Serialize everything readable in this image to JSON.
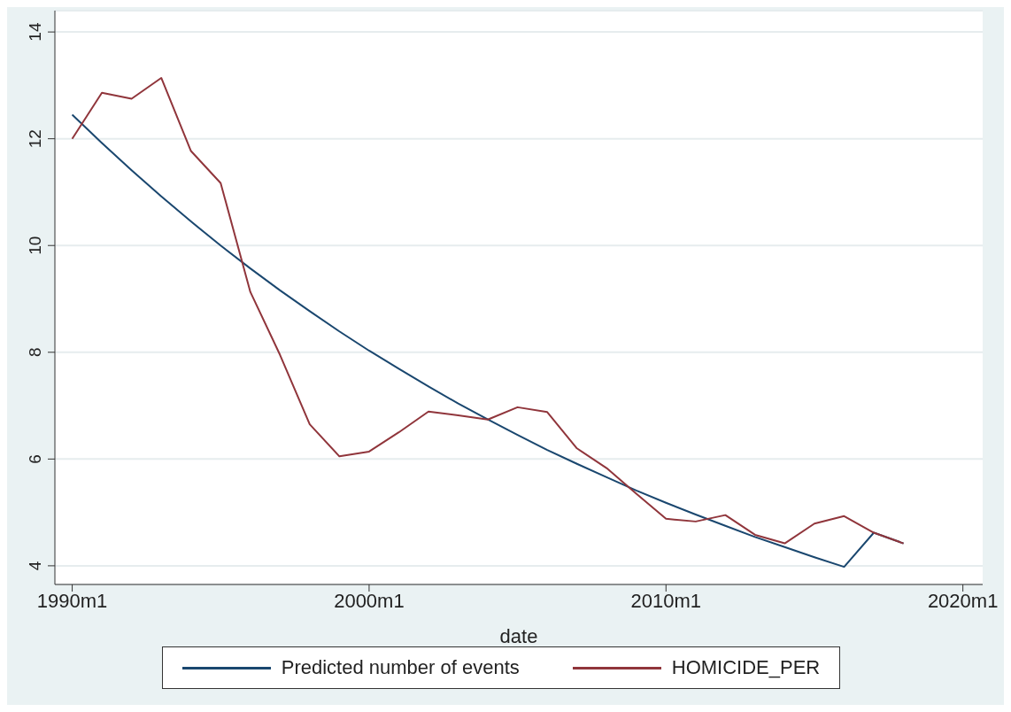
{
  "chart_data": {
    "type": "line",
    "xlabel": "date",
    "x": [
      "1990-01",
      "1991-01",
      "1992-01",
      "1993-01",
      "1994-01",
      "1995-01",
      "1996-01",
      "1997-01",
      "1998-01",
      "1999-01",
      "2000-01",
      "2001-01",
      "2002-01",
      "2003-01",
      "2004-01",
      "2005-01",
      "2006-01",
      "2007-01",
      "2008-01",
      "2009-01",
      "2010-01",
      "2011-01",
      "2012-01",
      "2013-01",
      "2014-01",
      "2015-01",
      "2016-01",
      "2017-01",
      "2018-01"
    ],
    "series": [
      {
        "name": "Predicted number of events",
        "color": "#1a476f",
        "values": [
          12.45,
          11.92,
          11.41,
          10.92,
          10.45,
          10.0,
          9.57,
          9.16,
          8.77,
          8.39,
          8.03,
          7.69,
          7.36,
          7.04,
          6.74,
          6.45,
          6.17,
          5.91,
          5.66,
          5.41,
          5.18,
          4.96,
          4.75,
          4.54,
          4.35,
          4.16,
          3.98,
          4.62,
          4.42
        ]
      },
      {
        "name": "HOMICIDE_PER",
        "color": "#90353b",
        "values": [
          12.0,
          12.86,
          12.75,
          13.14,
          11.77,
          11.17,
          9.13,
          7.95,
          6.65,
          6.05,
          6.14,
          6.5,
          6.89,
          6.82,
          6.74,
          6.97,
          6.88,
          6.2,
          5.83,
          5.35,
          4.88,
          4.83,
          4.95,
          4.58,
          4.42,
          4.79,
          4.93,
          4.62,
          4.42
        ]
      }
    ],
    "xlim": [
      "1989-06",
      "2020-09"
    ],
    "xticks": [
      {
        "value": "1990-01",
        "label": "1990m1"
      },
      {
        "value": "2000-01",
        "label": "2000m1"
      },
      {
        "value": "2010-01",
        "label": "2010m1"
      },
      {
        "value": "2020-01",
        "label": "2020m1"
      }
    ],
    "ylim": [
      3.65,
      14.4
    ],
    "yticks": [
      4,
      6,
      8,
      10,
      12,
      14
    ],
    "grid": "y",
    "legend": "bottom",
    "marker": "none",
    "line_style": "solid"
  }
}
